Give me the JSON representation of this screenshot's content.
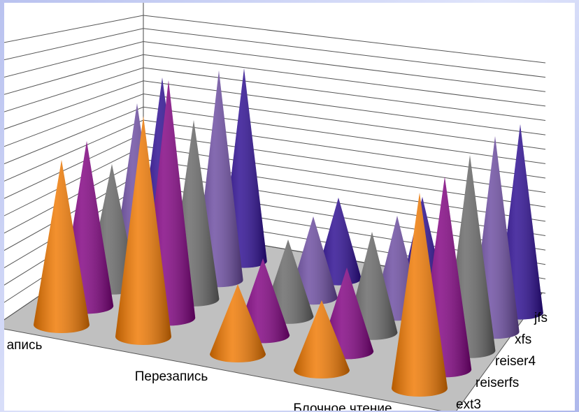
{
  "chart_data": {
    "type": "cone3d",
    "categories": [
      "апись",
      "Перезапись",
      null,
      "Блочное чтение",
      null
    ],
    "series": [
      {
        "name": "ext3",
        "color": "#f07800",
        "values": [
          11.8,
          15.8,
          5,
          5,
          14
        ]
      },
      {
        "name": "reiserfs",
        "color": "#800080",
        "values": [
          11.8,
          17,
          5.5,
          6,
          13.8
        ]
      },
      {
        "name": "reiser4",
        "color": "#666666",
        "values": [
          8.8,
          12.8,
          5.5,
          7.2,
          14
        ]
      },
      {
        "name": "xfs",
        "color": "#6a4aa0",
        "values": [
          11.8,
          15,
          5.8,
          7,
          14
        ]
      },
      {
        "name": "jfs",
        "color": "#2a0a90",
        "values": [
          12.3,
          13.8,
          5.8,
          7,
          13.5
        ]
      }
    ],
    "ylim": [
      0,
      16
    ],
    "yticks": [
      0,
      1,
      2,
      3,
      4,
      5,
      6,
      7,
      8,
      9,
      10,
      11,
      12,
      13,
      14,
      15,
      16
    ],
    "grid": true
  }
}
